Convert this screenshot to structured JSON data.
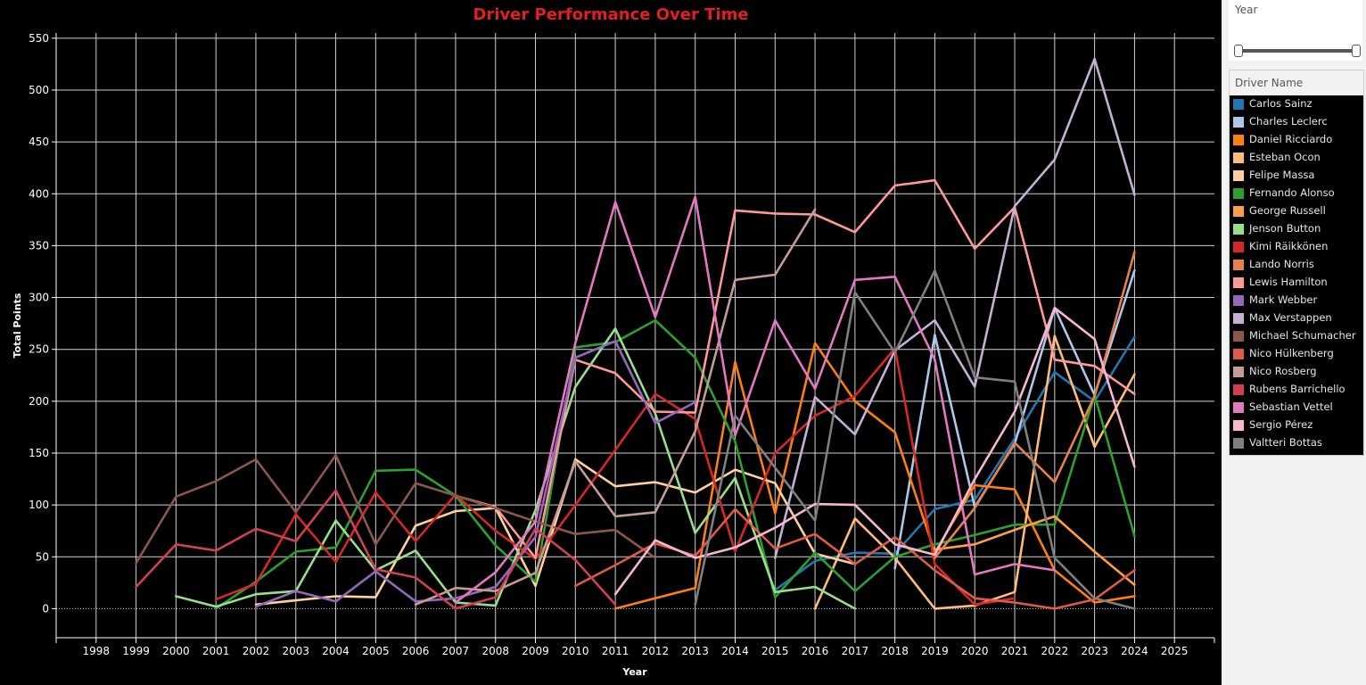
{
  "chart_data": {
    "type": "line",
    "title": "Driver Performance Over Time",
    "xlabel": "Year",
    "ylabel": "Total Points",
    "xlim": [
      1997,
      2026
    ],
    "ylim": [
      -28,
      555
    ],
    "x_ticks": [
      1998,
      1999,
      2000,
      2001,
      2002,
      2003,
      2004,
      2005,
      2006,
      2007,
      2008,
      2009,
      2010,
      2011,
      2012,
      2013,
      2014,
      2015,
      2016,
      2017,
      2018,
      2019,
      2020,
      2021,
      2022,
      2023,
      2024,
      2025
    ],
    "y_ticks": [
      0,
      50,
      100,
      150,
      200,
      250,
      300,
      350,
      400,
      450,
      500,
      550
    ],
    "grid": true,
    "legend_position": "right",
    "series": [
      {
        "name": "Carlos Sainz",
        "color": "#1f77b4",
        "points": [
          [
            2015,
            18
          ],
          [
            2016,
            46
          ],
          [
            2017,
            54
          ],
          [
            2018,
            53
          ],
          [
            2019,
            96
          ],
          [
            2020,
            105
          ],
          [
            2021,
            164
          ],
          [
            2022,
            228
          ],
          [
            2023,
            200
          ],
          [
            2024,
            262
          ]
        ]
      },
      {
        "name": "Charles Leclerc",
        "color": "#aec7e8",
        "points": [
          [
            2018,
            39
          ],
          [
            2019,
            264
          ],
          [
            2020,
            98
          ],
          [
            2021,
            159
          ],
          [
            2022,
            290
          ],
          [
            2023,
            206
          ],
          [
            2024,
            326
          ]
        ]
      },
      {
        "name": "Daniel Ricciardo",
        "color": "#ff7f0e",
        "points": [
          [
            2011,
            0
          ],
          [
            2012,
            10
          ],
          [
            2013,
            20
          ],
          [
            2014,
            238
          ],
          [
            2015,
            92
          ],
          [
            2016,
            256
          ],
          [
            2017,
            200
          ],
          [
            2018,
            170
          ],
          [
            2019,
            54
          ],
          [
            2020,
            119
          ],
          [
            2021,
            115
          ],
          [
            2022,
            37
          ],
          [
            2023,
            6
          ],
          [
            2024,
            12
          ]
        ]
      },
      {
        "name": "Esteban Ocon",
        "color": "#ffbb78",
        "points": [
          [
            2016,
            0
          ],
          [
            2017,
            87
          ],
          [
            2018,
            49
          ],
          [
            2019,
            0
          ],
          [
            2020,
            3
          ],
          [
            2021,
            16
          ],
          [
            2022,
            263
          ],
          [
            2023,
            156
          ],
          [
            2024,
            226
          ]
        ]
      },
      {
        "name": "Felipe Massa",
        "color": "#ffd09a",
        "points": [
          [
            2002,
            4
          ],
          [
            2003,
            8
          ],
          [
            2004,
            12
          ],
          [
            2005,
            11
          ],
          [
            2006,
            80
          ],
          [
            2007,
            94
          ],
          [
            2008,
            97
          ],
          [
            2009,
            22
          ],
          [
            2010,
            144
          ],
          [
            2011,
            118
          ],
          [
            2012,
            122
          ],
          [
            2013,
            112
          ],
          [
            2014,
            134
          ],
          [
            2015,
            121
          ],
          [
            2016,
            53
          ],
          [
            2017,
            43
          ]
        ]
      },
      {
        "name": "Fernando Alonso",
        "color": "#2ca02c",
        "points": [
          [
            2001,
            0
          ],
          [
            2002,
            26
          ],
          [
            2003,
            55
          ],
          [
            2004,
            59
          ],
          [
            2005,
            133
          ],
          [
            2006,
            134
          ],
          [
            2007,
            109
          ],
          [
            2008,
            61
          ],
          [
            2009,
            26
          ],
          [
            2010,
            252
          ],
          [
            2011,
            257
          ],
          [
            2012,
            278
          ],
          [
            2013,
            242
          ],
          [
            2014,
            161
          ],
          [
            2015,
            11
          ],
          [
            2016,
            54
          ],
          [
            2017,
            17
          ],
          [
            2018,
            50
          ],
          [
            2019,
            62
          ],
          [
            2020,
            71
          ],
          [
            2021,
            81
          ],
          [
            2022,
            81
          ],
          [
            2023,
            206
          ],
          [
            2024,
            70
          ]
        ]
      },
      {
        "name": "George Russell",
        "color": "#ffa040",
        "points": [
          [
            2019,
            57
          ],
          [
            2020,
            62
          ],
          [
            2021,
            76
          ],
          [
            2022,
            89
          ],
          [
            2023,
            55
          ],
          [
            2024,
            23
          ]
        ]
      },
      {
        "name": "Jenson Button",
        "color": "#98df8a",
        "points": [
          [
            2000,
            12
          ],
          [
            2001,
            2
          ],
          [
            2002,
            14
          ],
          [
            2003,
            17
          ],
          [
            2004,
            85
          ],
          [
            2005,
            37
          ],
          [
            2006,
            56
          ],
          [
            2007,
            6
          ],
          [
            2008,
            3
          ],
          [
            2009,
            95
          ],
          [
            2010,
            214
          ],
          [
            2011,
            270
          ],
          [
            2012,
            188
          ],
          [
            2013,
            73
          ],
          [
            2014,
            126
          ],
          [
            2015,
            16
          ],
          [
            2016,
            21
          ],
          [
            2017,
            0
          ]
        ]
      },
      {
        "name": "Kimi Räikkönen",
        "color": "#d62728",
        "points": [
          [
            2001,
            9
          ],
          [
            2002,
            24
          ],
          [
            2003,
            91
          ],
          [
            2004,
            45
          ],
          [
            2005,
            112
          ],
          [
            2006,
            65
          ],
          [
            2007,
            110
          ],
          [
            2008,
            75
          ],
          [
            2009,
            48
          ],
          [
            2010,
            100
          ],
          [
            2011,
            153
          ],
          [
            2012,
            207
          ],
          [
            2013,
            183
          ],
          [
            2014,
            55
          ],
          [
            2015,
            150
          ],
          [
            2016,
            186
          ],
          [
            2017,
            205
          ],
          [
            2018,
            251
          ],
          [
            2019,
            43
          ],
          [
            2020,
            4
          ],
          [
            2021,
            10
          ]
        ]
      },
      {
        "name": "Lando Norris",
        "color": "#e8804a",
        "points": [
          [
            2019,
            49
          ],
          [
            2020,
            97
          ],
          [
            2021,
            160
          ],
          [
            2022,
            122
          ],
          [
            2023,
            205
          ],
          [
            2024,
            344
          ]
        ]
      },
      {
        "name": "Lewis Hamilton",
        "color": "#ff9896",
        "points": [
          [
            2007,
            109
          ],
          [
            2008,
            98
          ],
          [
            2009,
            49
          ],
          [
            2010,
            240
          ],
          [
            2011,
            227
          ],
          [
            2012,
            190
          ],
          [
            2013,
            189
          ],
          [
            2014,
            384
          ],
          [
            2015,
            381
          ],
          [
            2016,
            380
          ],
          [
            2017,
            363
          ],
          [
            2018,
            408
          ],
          [
            2019,
            413
          ],
          [
            2020,
            347
          ],
          [
            2021,
            387
          ],
          [
            2022,
            240
          ],
          [
            2023,
            234
          ],
          [
            2024,
            207
          ]
        ]
      },
      {
        "name": "Mark Webber",
        "color": "#9467bd",
        "points": [
          [
            2002,
            2
          ],
          [
            2003,
            17
          ],
          [
            2004,
            7
          ],
          [
            2005,
            36
          ],
          [
            2006,
            7
          ],
          [
            2007,
            10
          ],
          [
            2008,
            21
          ],
          [
            2009,
            69
          ],
          [
            2010,
            242
          ],
          [
            2011,
            258
          ],
          [
            2012,
            179
          ],
          [
            2013,
            199
          ]
        ]
      },
      {
        "name": "Max Verstappen",
        "color": "#c5b0d5",
        "points": [
          [
            2015,
            49
          ],
          [
            2016,
            204
          ],
          [
            2017,
            168
          ],
          [
            2018,
            249
          ],
          [
            2019,
            278
          ],
          [
            2020,
            214
          ],
          [
            2021,
            388
          ],
          [
            2022,
            433
          ],
          [
            2023,
            530
          ],
          [
            2024,
            399
          ]
        ]
      },
      {
        "name": "Michael Schumacher",
        "color": "#8c564b",
        "points": [
          [
            1999,
            44
          ],
          [
            2000,
            108
          ],
          [
            2001,
            123
          ],
          [
            2002,
            144
          ],
          [
            2003,
            93
          ],
          [
            2004,
            148
          ],
          [
            2005,
            62
          ],
          [
            2006,
            121
          ],
          [
            2007,
            109
          ],
          [
            2008,
            97
          ],
          [
            2009,
            84
          ],
          [
            2010,
            72
          ],
          [
            2011,
            76
          ],
          [
            2012,
            49
          ]
        ]
      },
      {
        "name": "Nico Hülkenberg",
        "color": "#e05a48",
        "points": [
          [
            2010,
            22
          ],
          [
            2011,
            42
          ],
          [
            2012,
            63
          ],
          [
            2013,
            51
          ],
          [
            2014,
            96
          ],
          [
            2015,
            58
          ],
          [
            2016,
            72
          ],
          [
            2017,
            43
          ],
          [
            2018,
            69
          ],
          [
            2019,
            37
          ],
          [
            2020,
            10
          ],
          [
            2021,
            6
          ],
          [
            2022,
            0
          ],
          [
            2023,
            9
          ],
          [
            2024,
            37
          ]
        ]
      },
      {
        "name": "Nico Rosberg",
        "color": "#c49c94",
        "points": [
          [
            2006,
            4
          ],
          [
            2007,
            20
          ],
          [
            2008,
            17
          ],
          [
            2009,
            34.5
          ],
          [
            2010,
            142
          ],
          [
            2011,
            89
          ],
          [
            2012,
            93
          ],
          [
            2013,
            171
          ],
          [
            2014,
            317
          ],
          [
            2015,
            322
          ],
          [
            2016,
            385
          ]
        ]
      },
      {
        "name": "Rubens Barrichello",
        "color": "#d04050",
        "points": [
          [
            1999,
            21
          ],
          [
            2000,
            62
          ],
          [
            2001,
            56
          ],
          [
            2002,
            77
          ],
          [
            2003,
            65
          ],
          [
            2004,
            114
          ],
          [
            2005,
            38
          ],
          [
            2006,
            30
          ],
          [
            2007,
            0
          ],
          [
            2008,
            11
          ],
          [
            2009,
            77
          ],
          [
            2010,
            47
          ],
          [
            2011,
            4
          ]
        ]
      },
      {
        "name": "Sebastian Vettel",
        "color": "#e377c2",
        "points": [
          [
            2007,
            6
          ],
          [
            2008,
            35
          ],
          [
            2009,
            84
          ],
          [
            2010,
            256
          ],
          [
            2011,
            392
          ],
          [
            2012,
            281
          ],
          [
            2013,
            397
          ],
          [
            2014,
            167
          ],
          [
            2015,
            278
          ],
          [
            2016,
            212
          ],
          [
            2017,
            317
          ],
          [
            2018,
            320
          ],
          [
            2019,
            240
          ],
          [
            2020,
            33
          ],
          [
            2021,
            43
          ],
          [
            2022,
            37
          ]
        ]
      },
      {
        "name": "Sergio Pérez",
        "color": "#f7b6d2",
        "points": [
          [
            2011,
            14
          ],
          [
            2012,
            66
          ],
          [
            2013,
            49
          ],
          [
            2014,
            59
          ],
          [
            2015,
            78
          ],
          [
            2016,
            101
          ],
          [
            2017,
            100
          ],
          [
            2018,
            62
          ],
          [
            2019,
            52
          ],
          [
            2020,
            125
          ],
          [
            2021,
            190
          ],
          [
            2022,
            290
          ],
          [
            2023,
            260
          ],
          [
            2024,
            137
          ]
        ]
      },
      {
        "name": "Valtteri Bottas",
        "color": "#7f7f7f",
        "points": [
          [
            2013,
            4
          ],
          [
            2014,
            186
          ],
          [
            2015,
            136
          ],
          [
            2016,
            85
          ],
          [
            2017,
            305
          ],
          [
            2018,
            247
          ],
          [
            2019,
            326
          ],
          [
            2020,
            223
          ],
          [
            2021,
            219
          ],
          [
            2022,
            49
          ],
          [
            2023,
            10
          ],
          [
            2024,
            0
          ]
        ]
      }
    ]
  },
  "filters": {
    "year_title": "Year",
    "driver_title": "Driver Name"
  }
}
